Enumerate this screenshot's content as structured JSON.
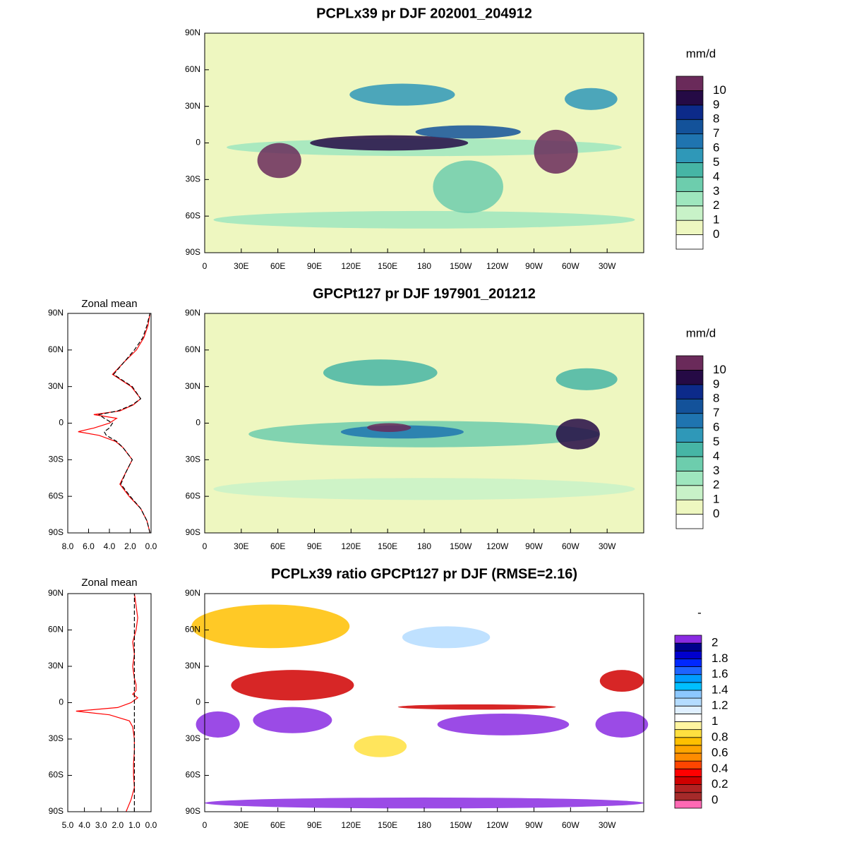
{
  "chart_data": [
    {
      "type": "map",
      "title": "PCPLx39 pr DJF 202001_204912",
      "xlim": [
        0,
        360
      ],
      "ylim": [
        -90,
        90
      ],
      "xticks": [
        0,
        {
          "value": 30,
          "label": "30E"
        },
        {
          "value": 60,
          "label": "60E"
        },
        {
          "value": 90,
          "label": "90E"
        },
        {
          "value": 120,
          "label": "120E"
        },
        {
          "value": 150,
          "label": "150E"
        },
        180,
        {
          "value": 210,
          "label": "150W"
        },
        {
          "value": 240,
          "label": "120W"
        },
        {
          "value": 270,
          "label": "90W"
        },
        {
          "value": 300,
          "label": "60W"
        },
        {
          "value": 330,
          "label": "30W"
        }
      ],
      "yticks": [
        {
          "value": -90,
          "label": "90S"
        },
        {
          "value": -60,
          "label": "60S"
        },
        {
          "value": -30,
          "label": "30S"
        },
        0,
        {
          "value": 30,
          "label": "30N"
        },
        {
          "value": 60,
          "label": "60N"
        },
        {
          "value": 90,
          "label": "90N"
        }
      ],
      "colorbar": {
        "title": "mm/d",
        "levels": [
          0,
          1,
          2,
          3,
          4,
          5,
          6,
          7,
          8,
          9,
          10
        ],
        "colors": [
          "#ffffff",
          "#eef7c0",
          "#c8f2c8",
          "#9ee6be",
          "#6dcdad",
          "#46b5a5",
          "#2f98b8",
          "#1f74b0",
          "#13529a",
          "#0c2a8a",
          "#250a45",
          "#6a2a5a"
        ],
        "ticks": [
          0,
          1,
          2,
          3,
          4,
          5,
          6,
          7,
          8,
          9,
          10
        ]
      }
    },
    {
      "type": "map",
      "title": "GPCPt127 pr DJF 197901_201212",
      "xlim": [
        0,
        360
      ],
      "ylim": [
        -90,
        90
      ],
      "xticks": [
        0,
        {
          "value": 30,
          "label": "30E"
        },
        {
          "value": 60,
          "label": "60E"
        },
        {
          "value": 90,
          "label": "90E"
        },
        {
          "value": 120,
          "label": "120E"
        },
        {
          "value": 150,
          "label": "150E"
        },
        180,
        {
          "value": 210,
          "label": "150W"
        },
        {
          "value": 240,
          "label": "120W"
        },
        {
          "value": 270,
          "label": "90W"
        },
        {
          "value": 300,
          "label": "60W"
        },
        {
          "value": 330,
          "label": "30W"
        }
      ],
      "yticks": [
        {
          "value": -90,
          "label": "90S"
        },
        {
          "value": -60,
          "label": "60S"
        },
        {
          "value": -30,
          "label": "30S"
        },
        0,
        {
          "value": 30,
          "label": "30N"
        },
        {
          "value": 60,
          "label": "60N"
        },
        {
          "value": 90,
          "label": "90N"
        }
      ],
      "colorbar": {
        "title": "mm/d",
        "levels": [
          0,
          1,
          2,
          3,
          4,
          5,
          6,
          7,
          8,
          9,
          10
        ],
        "colors": [
          "#ffffff",
          "#eef7c0",
          "#c8f2c8",
          "#9ee6be",
          "#6dcdad",
          "#46b5a5",
          "#2f98b8",
          "#1f74b0",
          "#13529a",
          "#0c2a8a",
          "#250a45",
          "#6a2a5a"
        ],
        "ticks": [
          0,
          1,
          2,
          3,
          4,
          5,
          6,
          7,
          8,
          9,
          10
        ]
      }
    },
    {
      "type": "line",
      "title": "Zonal mean",
      "y": [
        -90,
        -80,
        -70,
        -60,
        -50,
        -40,
        -30,
        -20,
        -15,
        -10,
        -7,
        -4,
        0,
        4,
        7,
        10,
        15,
        20,
        30,
        40,
        50,
        60,
        70,
        80,
        90
      ],
      "xlim": [
        8,
        0
      ],
      "ylim": [
        -90,
        90
      ],
      "xticks": [
        {
          "value": 8,
          "label": "8.0"
        },
        {
          "value": 6,
          "label": "6.0"
        },
        {
          "value": 4,
          "label": "4.0"
        },
        {
          "value": 2,
          "label": "2.0"
        },
        {
          "value": 0,
          "label": "0.0"
        }
      ],
      "yticks": [
        {
          "value": -90,
          "label": "90S"
        },
        {
          "value": -60,
          "label": "60S"
        },
        {
          "value": -30,
          "label": "30S"
        },
        0,
        {
          "value": 30,
          "label": "30N"
        },
        {
          "value": 60,
          "label": "60N"
        },
        {
          "value": 90,
          "label": "90N"
        }
      ],
      "series": [
        {
          "color": "#ff0000",
          "values": [
            0.1,
            0.4,
            1.0,
            2.1,
            3.0,
            2.4,
            1.8,
            2.7,
            3.4,
            5.0,
            7.0,
            5.5,
            4.0,
            3.3,
            5.5,
            3.0,
            1.7,
            1.0,
            1.9,
            3.7,
            2.6,
            1.4,
            0.7,
            0.3,
            0.1
          ]
        },
        {
          "color": "#000000",
          "dashed": true,
          "values": [
            0.1,
            0.4,
            1.0,
            2.0,
            2.9,
            2.4,
            1.8,
            2.7,
            3.3,
            4.3,
            4.5,
            4.0,
            3.7,
            4.5,
            5.0,
            3.2,
            1.8,
            1.0,
            1.8,
            3.6,
            2.6,
            1.6,
            0.8,
            0.4,
            0.1
          ]
        }
      ]
    },
    {
      "type": "map",
      "title": "PCPLx39 ratio GPCPt127 pr DJF (RMSE=2.16)",
      "xlim": [
        0,
        360
      ],
      "ylim": [
        -90,
        90
      ],
      "xticks": [
        0,
        {
          "value": 30,
          "label": "30E"
        },
        {
          "value": 60,
          "label": "60E"
        },
        {
          "value": 90,
          "label": "90E"
        },
        {
          "value": 120,
          "label": "120E"
        },
        {
          "value": 150,
          "label": "150E"
        },
        180,
        {
          "value": 210,
          "label": "150W"
        },
        {
          "value": 240,
          "label": "120W"
        },
        {
          "value": 270,
          "label": "90W"
        },
        {
          "value": 300,
          "label": "60W"
        },
        {
          "value": 330,
          "label": "30W"
        }
      ],
      "yticks": [
        {
          "value": -90,
          "label": "90S"
        },
        {
          "value": -60,
          "label": "60S"
        },
        {
          "value": -30,
          "label": "30S"
        },
        0,
        {
          "value": 30,
          "label": "30N"
        },
        {
          "value": 60,
          "label": "60N"
        },
        {
          "value": 90,
          "label": "90N"
        }
      ],
      "colorbar": {
        "title": "-",
        "levels": [
          0,
          0.1,
          0.2,
          0.3,
          0.4,
          0.5,
          0.6,
          0.7,
          0.8,
          0.9,
          1,
          1.1,
          1.2,
          1.3,
          1.4,
          1.5,
          1.6,
          1.7,
          1.8,
          1.9,
          2
        ],
        "colors": [
          "#ff69b4",
          "#a52a2a",
          "#b22222",
          "#d00000",
          "#ff0000",
          "#ff4500",
          "#ff8c00",
          "#ffa500",
          "#ffc000",
          "#ffe040",
          "#fff5a0",
          "#ffffff",
          "#e0f0ff",
          "#b4dcff",
          "#8cc8ff",
          "#00bfff",
          "#009cff",
          "#1e64ff",
          "#0028ff",
          "#0000cd",
          "#00008b",
          "#8a2be2"
        ],
        "ticks": [
          0,
          0.2,
          0.4,
          0.6,
          0.8,
          1,
          1.2,
          1.4,
          1.6,
          1.8,
          2
        ]
      }
    },
    {
      "type": "line",
      "title": "Zonal mean",
      "y": [
        -90,
        -80,
        -70,
        -60,
        -50,
        -40,
        -30,
        -20,
        -15,
        -10,
        -7,
        -4,
        0,
        4,
        7,
        10,
        15,
        20,
        30,
        40,
        50,
        60,
        70,
        80,
        90
      ],
      "xlim": [
        5,
        0
      ],
      "ylim": [
        -90,
        90
      ],
      "xticks": [
        {
          "value": 5,
          "label": "5.0"
        },
        {
          "value": 4,
          "label": "4.0"
        },
        {
          "value": 3,
          "label": "3.0"
        },
        {
          "value": 2,
          "label": "2.0"
        },
        {
          "value": 1,
          "label": "1.0"
        },
        {
          "value": 0,
          "label": "0.0"
        }
      ],
      "yticks": [
        {
          "value": -90,
          "label": "90S"
        },
        {
          "value": -60,
          "label": "60S"
        },
        {
          "value": -30,
          "label": "30S"
        },
        0,
        {
          "value": 30,
          "label": "30N"
        },
        {
          "value": 60,
          "label": "60N"
        },
        {
          "value": 90,
          "label": "90N"
        }
      ],
      "series": [
        {
          "color": "#ff0000",
          "values": [
            1.5,
            1.2,
            1.0,
            1.05,
            1.05,
            1.0,
            1.0,
            1.1,
            1.3,
            2.5,
            4.5,
            2.0,
            1.2,
            0.8,
            1.1,
            0.9,
            0.9,
            1.0,
            1.1,
            1.0,
            1.1,
            0.9,
            0.8,
            0.9,
            1.0
          ]
        },
        {
          "color": "#000000",
          "dashed": true,
          "values": [
            1,
            1,
            1,
            1,
            1,
            1,
            1,
            1,
            1,
            1,
            1,
            1,
            1,
            1,
            1,
            1,
            1,
            1,
            1,
            1,
            1,
            1,
            1,
            1,
            1
          ]
        }
      ]
    }
  ]
}
